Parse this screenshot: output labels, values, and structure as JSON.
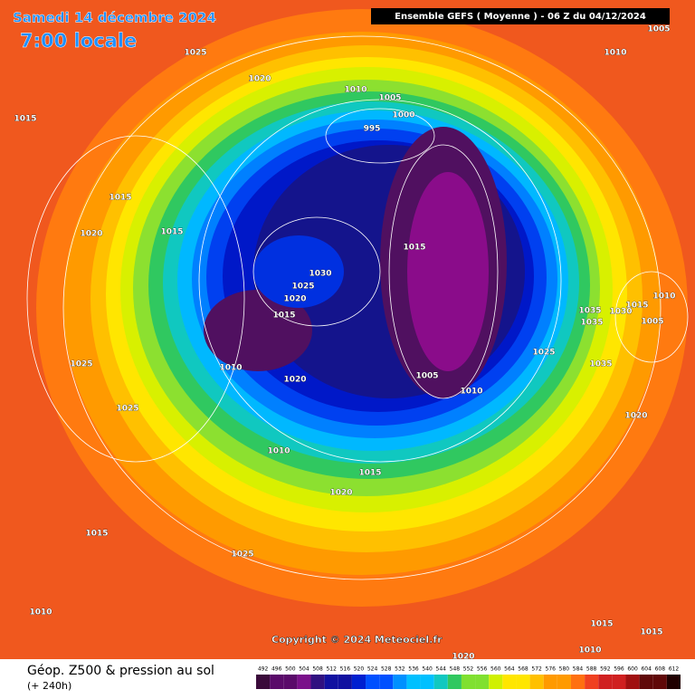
{
  "header": {
    "date": "Samedi 14 décembre 2024",
    "time": "7:00 locale",
    "run": "Ensemble GEFS ( Moyenne ) - 06 Z du 04/12/2024"
  },
  "map": {
    "isobar_labels": [
      1005,
      1025,
      1010,
      1020,
      1015,
      1010,
      1005,
      1000,
      995,
      1015,
      1020,
      1015,
      1015,
      1030,
      1025,
      1020,
      1015,
      1010,
      1015,
      1035,
      1030,
      1035,
      1005,
      1025,
      1025,
      1010,
      1035,
      1005,
      1020,
      1010,
      1025,
      1020,
      1010,
      1015,
      1020,
      1015,
      1025,
      1010,
      1015,
      1015,
      1010,
      1020
    ]
  },
  "copyright": "Copyright © 2024 Meteociel.fr",
  "footer": {
    "title": "Géop. Z500 & pression au sol",
    "lead": "(+ 240h)"
  },
  "legend": {
    "labels": [
      492,
      496,
      500,
      504,
      508,
      512,
      516,
      520,
      524,
      528,
      532,
      536,
      540,
      544,
      548,
      552,
      556,
      560,
      564,
      568,
      572,
      576,
      580,
      584,
      588,
      592,
      596,
      600,
      604,
      608,
      612
    ]
  }
}
